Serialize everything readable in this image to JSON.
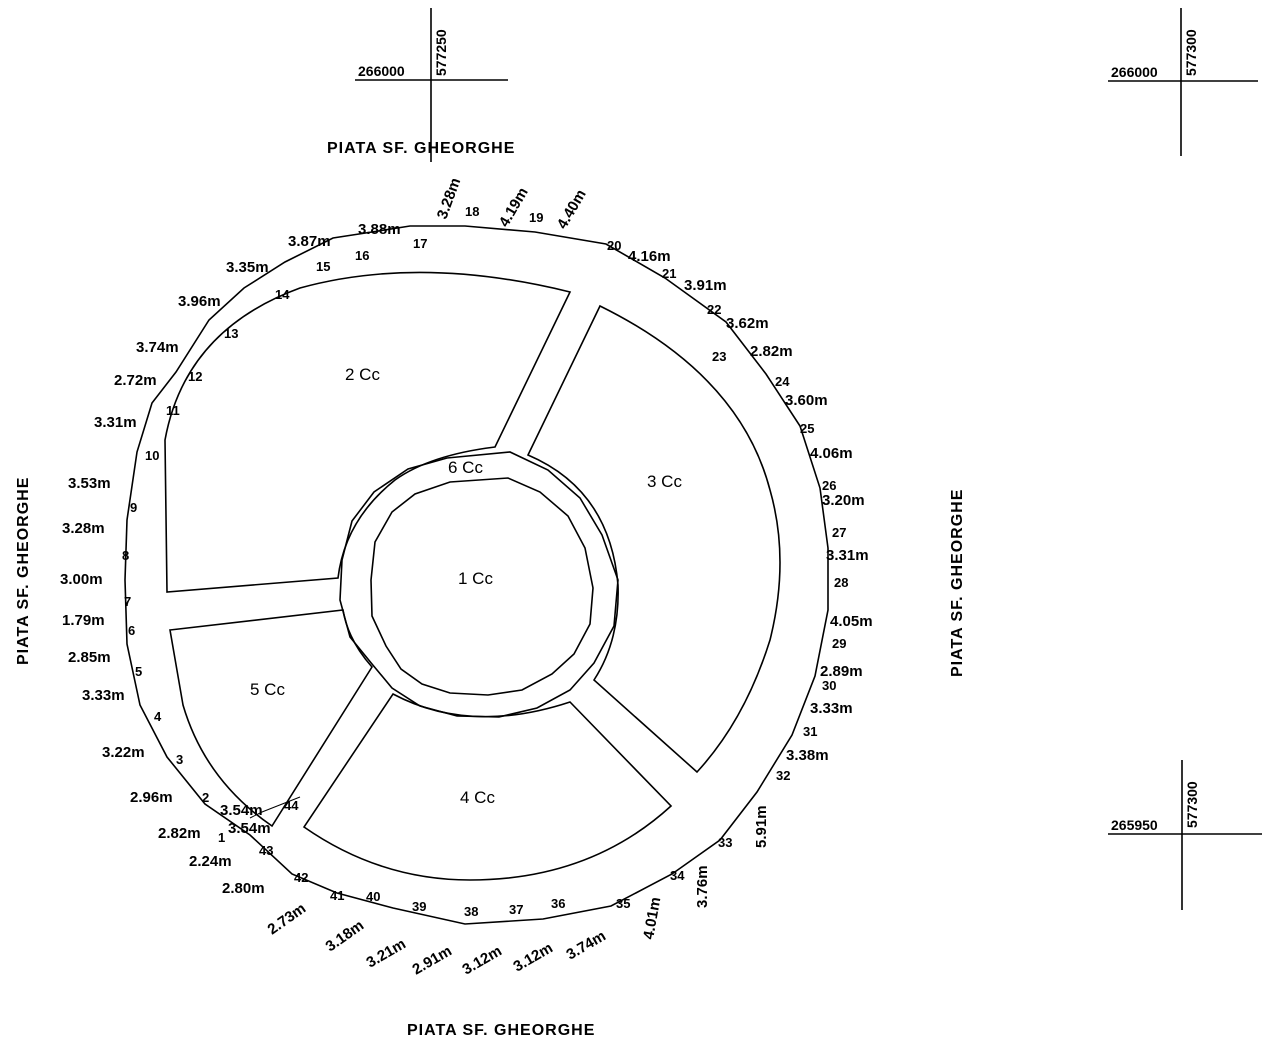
{
  "street_name": "PIATA SF. GHEORGHE",
  "street_labels": [
    {
      "id": "top",
      "text": "PIATA SF. GHEORGHE"
    },
    {
      "id": "bottom",
      "text": "PIATA SF. GHEORGHE"
    },
    {
      "id": "left",
      "text": "PIATA SF. GHEORGHE"
    },
    {
      "id": "right",
      "text": "PIATA SF. GHEORGHE"
    }
  ],
  "grid_crosses": [
    {
      "id": "cross-top-center",
      "x_label": "266000",
      "y_label": "577250"
    },
    {
      "id": "cross-top-right",
      "x_label": "266000",
      "y_label": "577300"
    },
    {
      "id": "cross-bottom-right",
      "x_label": "265950",
      "y_label": "577300"
    }
  ],
  "parcels": [
    {
      "id": "1",
      "label": "1 Cc"
    },
    {
      "id": "2",
      "label": "2 Cc"
    },
    {
      "id": "3",
      "label": "3 Cc"
    },
    {
      "id": "4",
      "label": "4 Cc"
    },
    {
      "id": "5",
      "label": "5 Cc"
    },
    {
      "id": "6",
      "label": "6 Cc"
    }
  ],
  "boundary_points": [
    "1",
    "2",
    "3",
    "4",
    "5",
    "6",
    "7",
    "8",
    "9",
    "10",
    "11",
    "12",
    "13",
    "14",
    "15",
    "16",
    "17",
    "18",
    "19",
    "20",
    "21",
    "22",
    "23",
    "24",
    "25",
    "26",
    "27",
    "28",
    "29",
    "30",
    "31",
    "32",
    "33",
    "34",
    "35",
    "36",
    "37",
    "38",
    "39",
    "40",
    "41",
    "42",
    "43",
    "44"
  ],
  "segment_lengths": [
    "3.54m",
    "3.54m",
    "2.82m",
    "2.24m",
    "2.80m",
    "2.73m",
    "3.18m",
    "3.21m",
    "2.91m",
    "3.12m",
    "3.12m",
    "3.74m",
    "4.01m",
    "3.76m",
    "5.91m",
    "3.38m",
    "3.33m",
    "2.89m",
    "4.05m",
    "3.31m",
    "3.20m",
    "4.06m",
    "3.60m",
    "2.82m",
    "3.62m",
    "3.91m",
    "4.16m",
    "4.40m",
    "4.19m",
    "3.28m",
    "3.88m",
    "3.87m",
    "3.35m",
    "3.96m",
    "3.74m",
    "2.72m",
    "3.31m",
    "3.53m",
    "3.28m",
    "3.00m",
    "1.79m",
    "2.85m",
    "3.33m",
    "3.22m",
    "2.96m"
  ]
}
